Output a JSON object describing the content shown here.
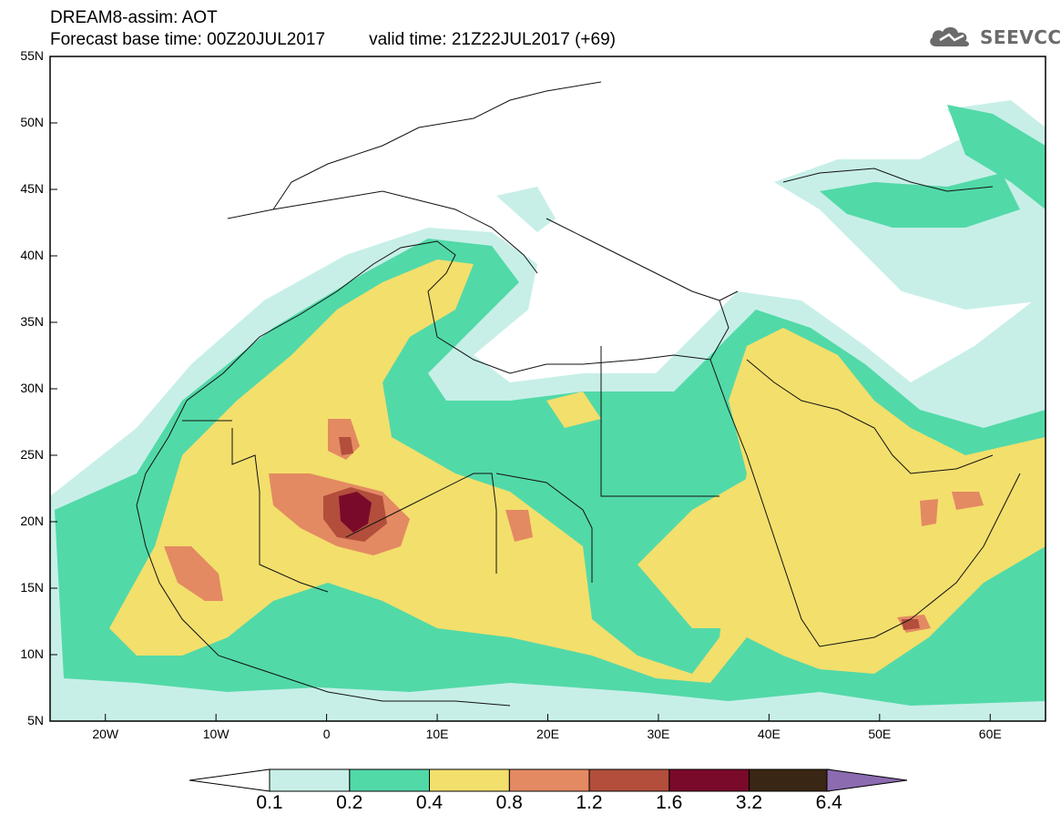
{
  "header": {
    "line1": "DREAM8-assim: AOT",
    "line2_base": "Forecast base time: 00Z20JUL2017",
    "line2_valid": "valid time: 21Z22JUL2017 (+69)"
  },
  "logo": {
    "text": "SEEVCCC",
    "icon": "cloud-icon",
    "color": "#6b6b6b"
  },
  "map": {
    "lat_labels": [
      "55N",
      "50N",
      "45N",
      "40N",
      "35N",
      "30N",
      "25N",
      "20N",
      "15N",
      "10N",
      "5N"
    ],
    "lon_labels": [
      "20W",
      "10W",
      "0",
      "10E",
      "20E",
      "30E",
      "40E",
      "50E",
      "60E"
    ],
    "lon_range": [
      -25,
      65
    ],
    "lat_range": [
      5,
      55
    ]
  },
  "colorbar": {
    "labels": [
      "0.1",
      "0.2",
      "0.4",
      "0.8",
      "1.2",
      "1.6",
      "3.2",
      "6.4"
    ],
    "colors": [
      "#c7efe8",
      "#52d9a8",
      "#f3df6c",
      "#e38a62",
      "#b24e3b",
      "#7a0a2a",
      "#3a2614",
      "#8c6bb1"
    ]
  }
}
